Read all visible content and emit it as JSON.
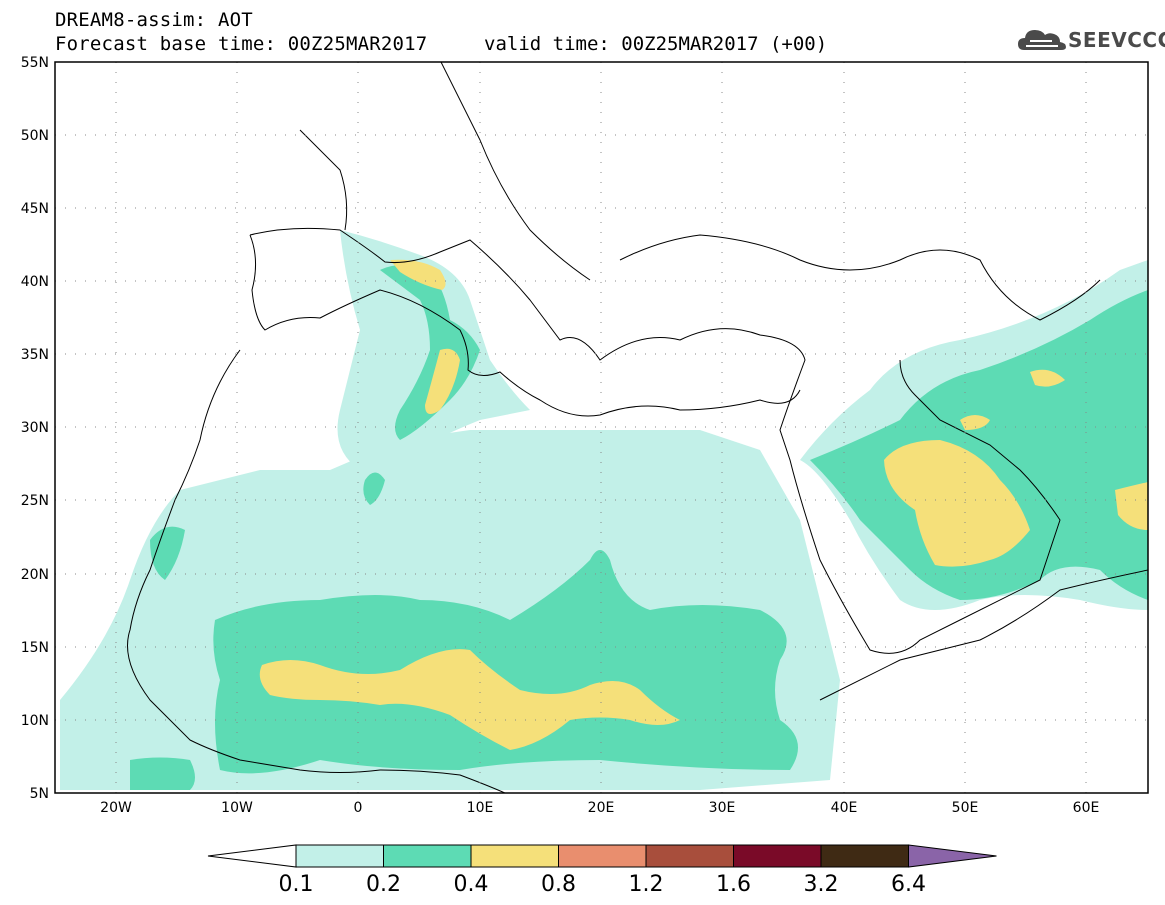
{
  "header": {
    "model_line": "DREAM8-assim: AOT",
    "base_time_line": "Forecast base time: 00Z25MAR2017",
    "valid_time_line": "valid time: 00Z25MAR2017 (+00)",
    "logo_text": "SEEVCCC",
    "logo_icon": "cloud-icon"
  },
  "map": {
    "lon_range": [
      -25,
      65
    ],
    "lat_range": [
      5,
      55
    ],
    "lat_labels": [
      "55N",
      "50N",
      "45N",
      "40N",
      "35N",
      "30N",
      "25N",
      "20N",
      "15N",
      "10N",
      "5N"
    ],
    "lon_labels": [
      "20W",
      "10W",
      "0",
      "10E",
      "20E",
      "30E",
      "40E",
      "50E",
      "60E"
    ],
    "gridlines": "dotted",
    "coastline_color": "#000000"
  },
  "colorbar": {
    "thresholds": [
      "0.1",
      "0.2",
      "0.4",
      "0.8",
      "1.2",
      "1.6",
      "3.2",
      "6.4"
    ],
    "colors": [
      "#c2f0e8",
      "#5ddbb4",
      "#f5e07a",
      "#e98e6e",
      "#a84e3c",
      "#7a0a28",
      "#3f2a14",
      "#8a64a8"
    ],
    "under_color": "#ffffff"
  }
}
